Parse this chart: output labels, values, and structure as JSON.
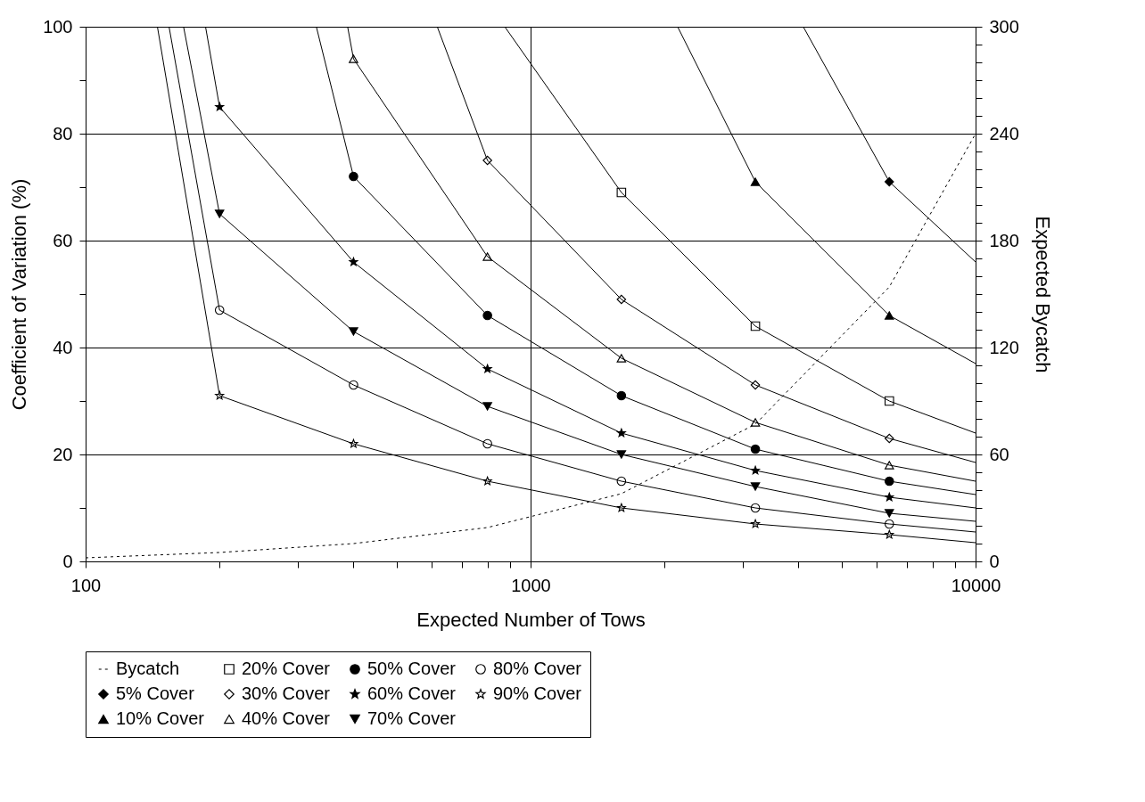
{
  "chart_data": {
    "type": "line",
    "xlabel": "Expected Number of Tows",
    "ylabel": "Coefficient of Variation (%)",
    "y2label": "Expected Bycatch",
    "log": "x",
    "grid": true,
    "legend": "bottom",
    "xlim": [
      100,
      10000
    ],
    "ylim": [
      0,
      100
    ],
    "y2lim": [
      0,
      300
    ],
    "xticks": [
      100,
      {
        "value": 200,
        "label": null
      },
      {
        "value": 300,
        "label": null
      },
      {
        "value": 400,
        "label": null
      },
      {
        "value": 500,
        "label": null
      },
      {
        "value": 600,
        "label": null
      },
      {
        "value": 700,
        "label": null
      },
      {
        "value": 800,
        "label": null
      },
      {
        "value": 900,
        "label": null
      },
      1000,
      {
        "value": 2000,
        "label": null
      },
      {
        "value": 3000,
        "label": null
      },
      {
        "value": 4000,
        "label": null
      },
      {
        "value": 5000,
        "label": null
      },
      {
        "value": 6000,
        "label": null
      },
      {
        "value": 7000,
        "label": null
      },
      {
        "value": 8000,
        "label": null
      },
      {
        "value": 9000,
        "label": null
      },
      10000
    ],
    "yticks": [
      0,
      {
        "value": 10,
        "label": null
      },
      20,
      {
        "value": 30,
        "label": null
      },
      40,
      {
        "value": 50,
        "label": null
      },
      60,
      {
        "value": 70,
        "label": null
      },
      80,
      {
        "value": 90,
        "label": null
      },
      100
    ],
    "y2ticks": [
      0,
      {
        "value": 10,
        "label": null
      },
      {
        "value": 20,
        "label": null
      },
      {
        "value": 30,
        "label": null
      },
      {
        "value": 40,
        "label": null
      },
      {
        "value": 50,
        "label": null
      },
      60,
      {
        "value": 70,
        "label": null
      },
      {
        "value": 80,
        "label": null
      },
      {
        "value": 90,
        "label": null
      },
      {
        "value": 100,
        "label": null
      },
      {
        "value": 110,
        "label": null
      },
      120,
      {
        "value": 130,
        "label": null
      },
      {
        "value": 140,
        "label": null
      },
      {
        "value": 150,
        "label": null
      },
      {
        "value": 160,
        "label": null
      },
      {
        "value": 170,
        "label": null
      },
      180,
      {
        "value": 190,
        "label": null
      },
      {
        "value": 200,
        "label": null
      },
      {
        "value": 210,
        "label": null
      },
      {
        "value": 220,
        "label": null
      },
      {
        "value": 230,
        "label": null
      },
      240,
      {
        "value": 250,
        "label": null
      },
      {
        "value": 260,
        "label": null
      },
      {
        "value": 270,
        "label": null
      },
      {
        "value": 280,
        "label": null
      },
      {
        "value": 290,
        "label": null
      },
      300
    ],
    "series": [
      {
        "name": "Bycatch",
        "color": "#000000",
        "axis": "y2",
        "line_style": "dotted",
        "marker": "none",
        "x": [
          100,
          200,
          400,
          800,
          1600,
          3200,
          6400,
          10000
        ],
        "values": [
          2,
          5,
          10,
          19,
          38,
          77,
          154,
          240
        ]
      },
      {
        "type": "scatter",
        "name": "5% Cover",
        "color": "#000000",
        "marker": "diamond",
        "x": [
          6400
        ],
        "values": [
          71
        ]
      },
      {
        "type": "scatter",
        "name": "10% Cover",
        "color": "#000000",
        "marker": "triangle",
        "x": [
          3200,
          6400
        ],
        "values": [
          71,
          46
        ]
      },
      {
        "type": "scatter",
        "name": "20% Cover",
        "color": "#000000",
        "marker": "square-open",
        "x": [
          1600,
          3200,
          6400
        ],
        "values": [
          69,
          44,
          30
        ]
      },
      {
        "type": "scatter",
        "name": "30% Cover",
        "color": "#000000",
        "marker": "diamond-open",
        "x": [
          800,
          1600,
          3200,
          6400
        ],
        "values": [
          75,
          49,
          33,
          23
        ]
      },
      {
        "type": "scatter",
        "name": "40% Cover",
        "color": "#000000",
        "marker": "triangle-open",
        "x": [
          400,
          800,
          1600,
          3200,
          6400
        ],
        "values": [
          94,
          57,
          38,
          26,
          18
        ]
      },
      {
        "type": "scatter",
        "name": "50% Cover",
        "color": "#000000",
        "marker": "circle",
        "x": [
          400,
          800,
          1600,
          3200,
          6400
        ],
        "values": [
          72,
          46,
          31,
          21,
          15
        ]
      },
      {
        "type": "scatter",
        "name": "60% Cover",
        "color": "#000000",
        "marker": "star",
        "x": [
          200,
          400,
          800,
          1600,
          3200,
          6400
        ],
        "values": [
          85,
          56,
          36,
          24,
          17,
          12
        ]
      },
      {
        "type": "scatter",
        "name": "70% Cover",
        "color": "#000000",
        "marker": "triangle-down",
        "x": [
          200,
          400,
          800,
          1600,
          3200,
          6400
        ],
        "values": [
          65,
          43,
          29,
          20,
          14,
          9
        ]
      },
      {
        "type": "scatter",
        "name": "80% Cover",
        "color": "#000000",
        "marker": "circle-open",
        "x": [
          200,
          400,
          800,
          1600,
          3200,
          6400
        ],
        "values": [
          47,
          33,
          22,
          15,
          10,
          7
        ]
      },
      {
        "type": "scatter",
        "name": "90% Cover",
        "color": "#000000",
        "marker": "star-open",
        "x": [
          200,
          400,
          800,
          1600,
          3200,
          6400
        ],
        "values": [
          31,
          22,
          15,
          10,
          7,
          5
        ]
      },
      {
        "type": "line",
        "color": "#000000",
        "marker": "none",
        "x": [
          4100,
          6400,
          10000
        ],
        "values": [
          100,
          71,
          56
        ]
      },
      {
        "type": "line",
        "color": "#000000",
        "marker": "none",
        "x": [
          2140,
          3200,
          6400,
          10000
        ],
        "values": [
          100,
          71,
          46,
          37
        ]
      },
      {
        "type": "line",
        "color": "#000000",
        "marker": "none",
        "x": [
          875,
          1600,
          3200,
          6400,
          10000
        ],
        "values": [
          100,
          69,
          44,
          30,
          24
        ]
      },
      {
        "type": "line",
        "color": "#000000",
        "marker": "none",
        "x": [
          617,
          800,
          1600,
          3200,
          6400,
          10000
        ],
        "values": [
          100,
          75,
          49,
          33,
          23,
          18.5
        ]
      },
      {
        "type": "line",
        "color": "#000000",
        "marker": "none",
        "x": [
          388,
          400,
          800,
          1600,
          3200,
          6400,
          10000
        ],
        "values": [
          100,
          94,
          57,
          38,
          26,
          18,
          15
        ]
      },
      {
        "type": "line",
        "color": "#000000",
        "marker": "none",
        "x": [
          330,
          400,
          800,
          1600,
          3200,
          6400,
          10000
        ],
        "values": [
          100,
          72,
          46,
          31,
          21,
          15,
          12.5
        ]
      },
      {
        "type": "line",
        "color": "#000000",
        "marker": "none",
        "x": [
          186,
          200,
          400,
          800,
          1600,
          3200,
          6400,
          10000
        ],
        "values": [
          100,
          85,
          56,
          36,
          24,
          17,
          12,
          10
        ]
      },
      {
        "type": "line",
        "color": "#000000",
        "marker": "none",
        "x": [
          166,
          200,
          400,
          800,
          1600,
          3200,
          6400,
          10000
        ],
        "values": [
          100,
          65,
          43,
          29,
          20,
          14,
          9,
          7.5
        ]
      },
      {
        "type": "line",
        "color": "#000000",
        "marker": "none",
        "x": [
          154,
          200,
          400,
          800,
          1600,
          3200,
          6400,
          10000
        ],
        "values": [
          100,
          47,
          33,
          22,
          15,
          10,
          7,
          5.5
        ]
      },
      {
        "type": "line",
        "color": "#000000",
        "marker": "none",
        "x": [
          145,
          200,
          400,
          800,
          1600,
          3200,
          6400,
          10000
        ],
        "values": [
          100,
          31,
          22,
          15,
          10,
          7,
          5,
          3.5
        ]
      }
    ]
  }
}
